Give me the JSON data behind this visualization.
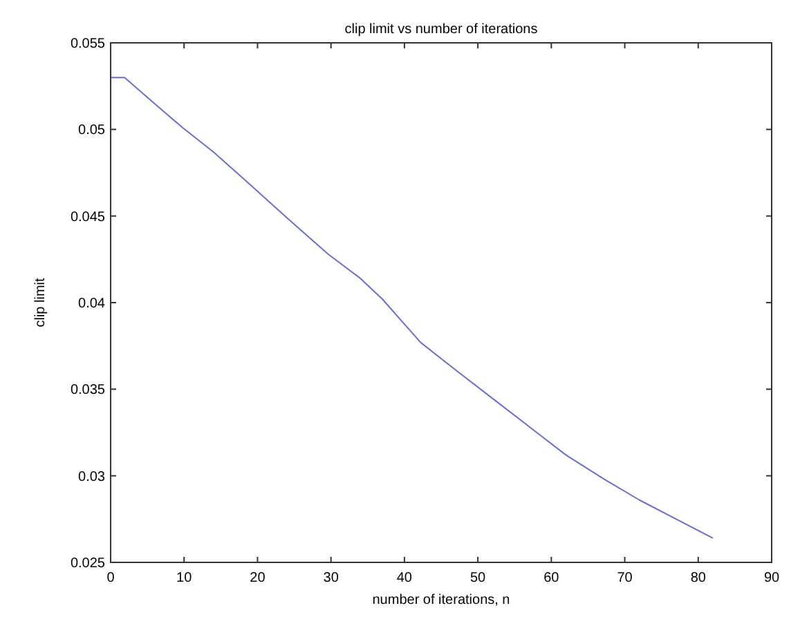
{
  "chart_data": {
    "type": "line",
    "title": "clip limit vs number of iterations",
    "xlabel": "number of iterations, n",
    "ylabel": "clip limit",
    "series": [
      {
        "color": "#6b6bdc",
        "x": [
          0,
          1.9,
          6.5,
          9.8,
          14,
          18.5,
          24,
          29.6,
          34,
          37,
          39.5,
          42.2,
          47,
          52.2,
          57.4,
          62,
          67.2,
          72,
          77,
          82
        ],
        "values": [
          0.053,
          0.053,
          0.0513,
          0.0501,
          0.0487,
          0.047,
          0.0449,
          0.0428,
          0.0414,
          0.0402,
          0.039,
          0.0377,
          0.0361,
          0.0344,
          0.0327,
          0.0312,
          0.0298,
          0.0286,
          0.0275,
          0.0264
        ]
      }
    ],
    "xlim": [
      0,
      90
    ],
    "xticks": [
      0,
      10,
      20,
      30,
      40,
      50,
      60,
      70,
      80,
      90
    ],
    "ylim": [
      0.025,
      0.055
    ],
    "yticks": [
      0.025,
      0.03,
      0.035,
      0.04,
      0.045,
      0.05,
      0.055
    ],
    "grid": false,
    "marker": "none",
    "line_style": "solid"
  }
}
